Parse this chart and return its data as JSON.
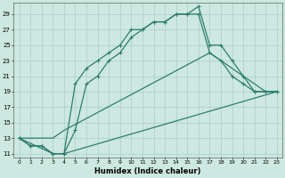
{
  "xlabel": "Humidex (Indice chaleur)",
  "background_color": "#cce8e0",
  "grid_color": "#aacfc8",
  "line_color": "#2e7d6e",
  "ylim": [
    10.5,
    30.5
  ],
  "xlim": [
    -0.5,
    23.5
  ],
  "yticks": [
    11,
    13,
    15,
    17,
    19,
    21,
    23,
    25,
    27,
    29
  ],
  "xticks": [
    0,
    1,
    2,
    3,
    4,
    5,
    6,
    7,
    8,
    9,
    10,
    11,
    12,
    13,
    14,
    15,
    16,
    17,
    18,
    19,
    20,
    21,
    22,
    23
  ],
  "line1_x": [
    0,
    1,
    2,
    3,
    4,
    5,
    6,
    7,
    8,
    9,
    10,
    11,
    12,
    13,
    14,
    15,
    16,
    17,
    18,
    19,
    20,
    21,
    22,
    23
  ],
  "line1_y": [
    13,
    12,
    12,
    11,
    11,
    20,
    22,
    23,
    24,
    25,
    27,
    27,
    28,
    28,
    29,
    29,
    30,
    25,
    25,
    23,
    21,
    19,
    19,
    19
  ],
  "line2_x": [
    0,
    1,
    2,
    3,
    4,
    5,
    6,
    7,
    8,
    9,
    10,
    11,
    12,
    13,
    14,
    15,
    16,
    17,
    18,
    19,
    20,
    21,
    22,
    23
  ],
  "line2_y": [
    13,
    12,
    12,
    11,
    11,
    14,
    20,
    21,
    23,
    24,
    26,
    27,
    28,
    28,
    29,
    29,
    29,
    24,
    23,
    21,
    20,
    19,
    19,
    19
  ],
  "line3_x": [
    0,
    3,
    4,
    17,
    22,
    23
  ],
  "line3_y": [
    13,
    13,
    14,
    24,
    19,
    19
  ],
  "line4_x": [
    0,
    3,
    4,
    23
  ],
  "line4_y": [
    13,
    11,
    11,
    19
  ]
}
